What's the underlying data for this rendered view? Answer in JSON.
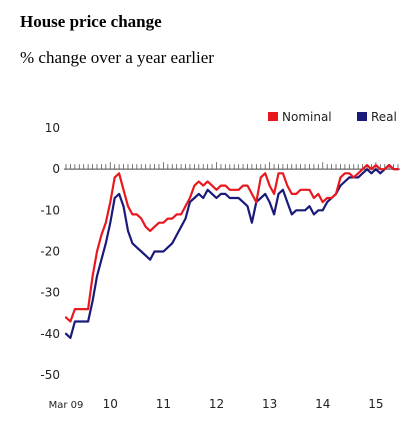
{
  "header": {
    "title": "House price change",
    "subtitle": "% change over a year earlier"
  },
  "chart_data": {
    "type": "line",
    "title": "House price change",
    "subtitle": "% change over a year earlier",
    "xlabel": "",
    "ylabel": "",
    "ylim": [
      -50,
      10
    ],
    "y_ticks": [
      "10",
      "0",
      "-10",
      "-20",
      "-30",
      "-40",
      "-50"
    ],
    "x_ticks": [
      "Mar 09",
      "10",
      "11",
      "12",
      "13",
      "14",
      "15"
    ],
    "grid": false,
    "legend_position": "top-right",
    "colors": {
      "Nominal": "#e8191e",
      "Real": "#1a1a7a"
    },
    "x": [
      "2009-03",
      "2009-04",
      "2009-05",
      "2009-06",
      "2009-07",
      "2009-08",
      "2009-09",
      "2009-10",
      "2009-11",
      "2009-12",
      "2010-01",
      "2010-02",
      "2010-03",
      "2010-04",
      "2010-05",
      "2010-06",
      "2010-07",
      "2010-08",
      "2010-09",
      "2010-10",
      "2010-11",
      "2010-12",
      "2011-01",
      "2011-02",
      "2011-03",
      "2011-04",
      "2011-05",
      "2011-06",
      "2011-07",
      "2011-08",
      "2011-09",
      "2011-10",
      "2011-11",
      "2011-12",
      "2012-01",
      "2012-02",
      "2012-03",
      "2012-04",
      "2012-05",
      "2012-06",
      "2012-07",
      "2012-08",
      "2012-09",
      "2012-10",
      "2012-11",
      "2012-12",
      "2013-01",
      "2013-02",
      "2013-03",
      "2013-04",
      "2013-05",
      "2013-06",
      "2013-07",
      "2013-08",
      "2013-09",
      "2013-10",
      "2013-11",
      "2013-12",
      "2014-01",
      "2014-02",
      "2014-03",
      "2014-04",
      "2014-05",
      "2014-06",
      "2014-07",
      "2014-08",
      "2014-09",
      "2014-10",
      "2014-11",
      "2014-12",
      "2015-01",
      "2015-02",
      "2015-03",
      "2015-04",
      "2015-05",
      "2015-06"
    ],
    "series": [
      {
        "name": "Nominal",
        "values": [
          -36,
          -37,
          -34,
          -34,
          -34,
          -34,
          -26,
          -20,
          -16,
          -13,
          -8,
          -2,
          -1,
          -5,
          -9,
          -11,
          -11,
          -12,
          -14,
          -15,
          -14,
          -13,
          -13,
          -12,
          -12,
          -11,
          -11,
          -9,
          -7,
          -4,
          -3,
          -4,
          -3,
          -4,
          -5,
          -4,
          -4,
          -5,
          -5,
          -5,
          -4,
          -4,
          -6,
          -8,
          -2,
          -1,
          -4,
          -6,
          -1,
          -1,
          -4,
          -6,
          -6,
          -5,
          -5,
          -5,
          -7,
          -6,
          -8,
          -7,
          -7,
          -6,
          -2,
          -1,
          -1,
          -2,
          -1,
          0,
          1,
          0,
          1,
          0,
          0,
          1,
          0,
          0
        ]
      },
      {
        "name": "Real",
        "values": [
          -40,
          -41,
          -37,
          -37,
          -37,
          -37,
          -32,
          -26,
          -22,
          -18,
          -13,
          -7,
          -6,
          -9,
          -15,
          -18,
          -19,
          -20,
          -21,
          -22,
          -20,
          -20,
          -20,
          -19,
          -18,
          -16,
          -14,
          -12,
          -8,
          -7,
          -6,
          -7,
          -5,
          -6,
          -7,
          -6,
          -6,
          -7,
          -7,
          -7,
          -8,
          -9,
          -13,
          -8,
          -7,
          -6,
          -8,
          -11,
          -6,
          -5,
          -8,
          -11,
          -10,
          -10,
          -10,
          -9,
          -11,
          -10,
          -10,
          -8,
          -7,
          -6,
          -4,
          -3,
          -2,
          -2,
          -2,
          -1,
          0,
          -1,
          0,
          -1,
          0,
          1,
          0,
          0
        ]
      }
    ]
  }
}
